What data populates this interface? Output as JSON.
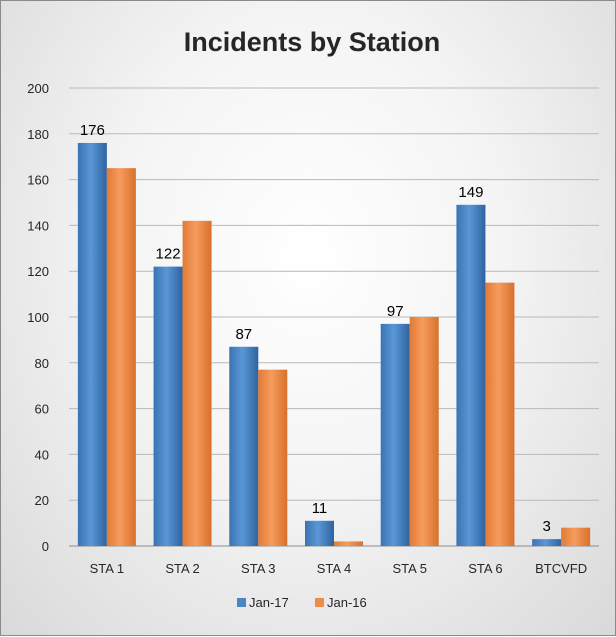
{
  "chart_data": {
    "type": "bar",
    "title": "Incidents by Station",
    "xlabel": "",
    "ylabel": "",
    "categories": [
      "STA 1",
      "STA 2",
      "STA 3",
      "STA 4",
      "STA 5",
      "STA 6",
      "BTCVFD"
    ],
    "series": [
      {
        "name": "Jan-17",
        "values": [
          176,
          122,
          87,
          11,
          97,
          149,
          3
        ],
        "color": "#4a86c5",
        "show_data_labels": true
      },
      {
        "name": "Jan-16",
        "values": [
          165,
          142,
          77,
          2,
          100,
          115,
          8
        ],
        "color": "#ed8c4b",
        "show_data_labels": false
      }
    ],
    "ylim": [
      0,
      200
    ],
    "y_ticks": [
      "0",
      "20",
      "40",
      "60",
      "80",
      "100",
      "120",
      "140",
      "160",
      "180",
      "200"
    ],
    "grid": true,
    "legend": "bottom"
  }
}
